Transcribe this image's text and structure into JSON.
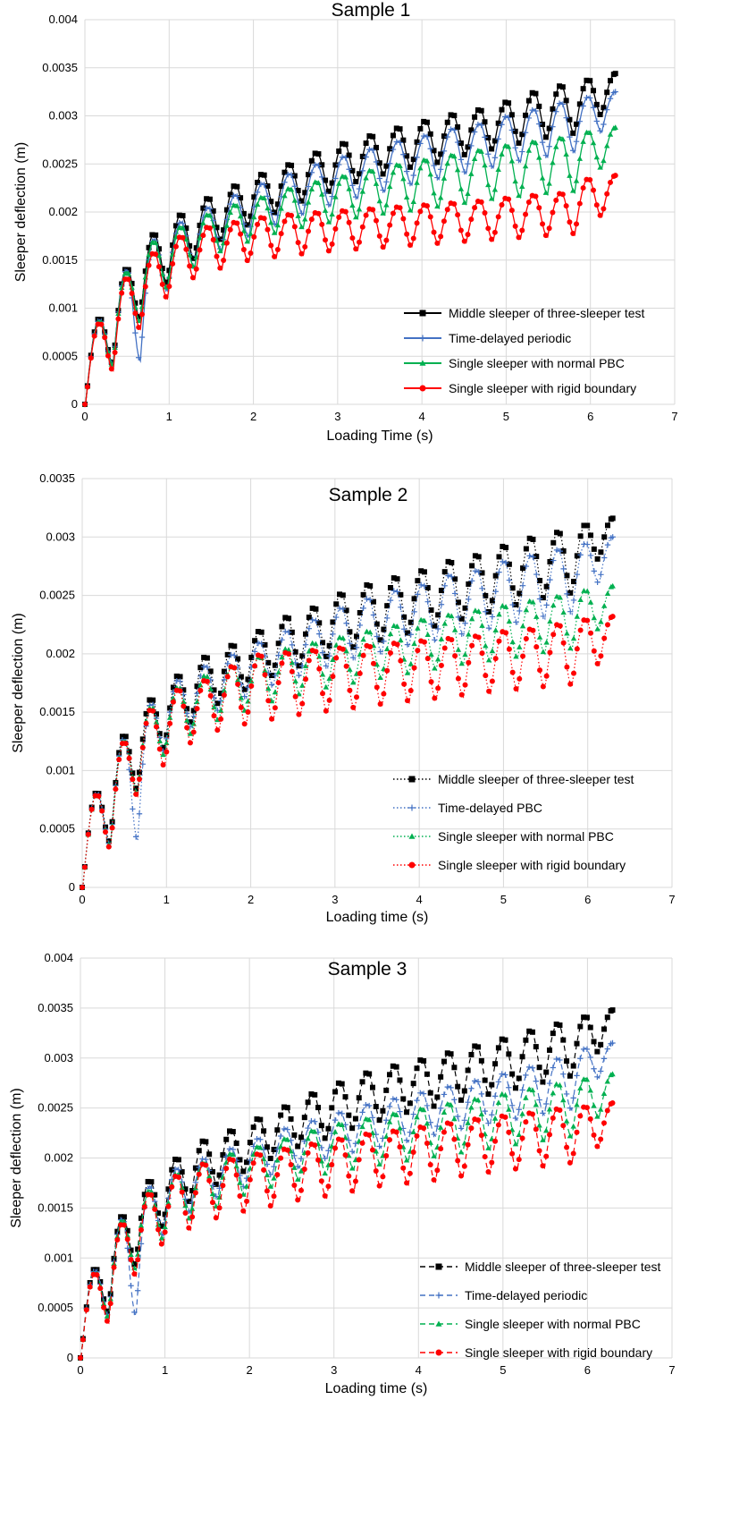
{
  "chart_data": [
    {
      "type": "line",
      "title": "Sample 1",
      "xlabel": "Loading Time (s)",
      "ylabel": "Sleeper deflection (m)",
      "xlim": [
        0,
        7
      ],
      "ylim": [
        0,
        0.004
      ],
      "xticks": [
        "0",
        "1",
        "2",
        "3",
        "4",
        "5",
        "6",
        "7"
      ],
      "yticks": [
        "0",
        "0.0005",
        "0.001",
        "0.0015",
        "0.002",
        "0.0025",
        "0.003",
        "0.0035",
        "0.004"
      ],
      "grid": true,
      "legend_position": "bottom-right",
      "series": [
        {
          "name": "Middle sleeper of three-sleeper test",
          "color": "#000000",
          "marker": "square",
          "dash": "solid",
          "peaks": [
            0.0009,
            0.00142,
            0.00178,
            0.00198,
            0.00215,
            0.00228,
            0.0024,
            0.0025,
            0.00262,
            0.00272,
            0.0028,
            0.00288,
            0.00295,
            0.00302,
            0.00307,
            0.00315,
            0.00325,
            0.00332,
            0.00338,
            0.00344
          ],
          "troughs": [
            0.00042,
            0.00089,
            0.00125,
            0.0015,
            0.0017,
            0.00185,
            0.00198,
            0.0021,
            0.0022,
            0.0023,
            0.00238,
            0.00245,
            0.0025,
            0.00258,
            0.00264,
            0.0027,
            0.00276,
            0.0028,
            0.003
          ]
        },
        {
          "name": "Time-delayed periodic",
          "color": "#4472c4",
          "marker": "plus",
          "dash": "solid",
          "peaks": [
            0.00088,
            0.0014,
            0.00172,
            0.0019,
            0.00205,
            0.00218,
            0.0023,
            0.0024,
            0.0025,
            0.00258,
            0.00266,
            0.00274,
            0.0028,
            0.00287,
            0.00292,
            0.003,
            0.00307,
            0.00314,
            0.0032,
            0.00325
          ],
          "troughs": [
            0.00041,
            0.00045,
            0.00118,
            0.00142,
            0.0016,
            0.00174,
            0.00186,
            0.00197,
            0.00206,
            0.00214,
            0.00221,
            0.00228,
            0.00234,
            0.0024,
            0.00246,
            0.00252,
            0.00257,
            0.00262,
            0.00283
          ]
        },
        {
          "name": "Single sleeper with normal PBC",
          "color": "#00b050",
          "marker": "triangle",
          "dash": "solid",
          "peaks": [
            0.00087,
            0.00138,
            0.0017,
            0.00185,
            0.00198,
            0.00208,
            0.00216,
            0.00225,
            0.00232,
            0.00238,
            0.00244,
            0.0025,
            0.00255,
            0.0026,
            0.00265,
            0.0027,
            0.00274,
            0.00278,
            0.00284,
            0.00288
          ],
          "troughs": [
            0.0004,
            0.00085,
            0.0012,
            0.00142,
            0.00158,
            0.00168,
            0.00177,
            0.00183,
            0.00188,
            0.00193,
            0.00197,
            0.002,
            0.00204,
            0.00208,
            0.00212,
            0.00215,
            0.00218,
            0.0022,
            0.00245
          ]
        },
        {
          "name": "Single sleeper with rigid boundary",
          "color": "#ff0000",
          "marker": "circle",
          "dash": "solid",
          "peaks": [
            0.00085,
            0.00132,
            0.00158,
            0.00175,
            0.00185,
            0.0019,
            0.00195,
            0.00198,
            0.002,
            0.00202,
            0.00204,
            0.00206,
            0.00208,
            0.0021,
            0.00212,
            0.00215,
            0.00218,
            0.0022,
            0.00235,
            0.00238
          ],
          "troughs": [
            0.00035,
            0.00078,
            0.0011,
            0.0013,
            0.0014,
            0.00148,
            0.00152,
            0.00155,
            0.00158,
            0.0016,
            0.00162,
            0.00164,
            0.00166,
            0.00168,
            0.0017,
            0.00172,
            0.00174,
            0.00176,
            0.00195
          ]
        }
      ]
    },
    {
      "type": "line",
      "title": "Sample 2",
      "xlabel": "Loading time (s)",
      "ylabel": "Sleeper deflection (m)",
      "xlim": [
        0,
        7
      ],
      "ylim": [
        0,
        0.0035
      ],
      "xticks": [
        "0",
        "1",
        "2",
        "3",
        "4",
        "5",
        "6",
        "7"
      ],
      "yticks": [
        "0",
        "0.0005",
        "0.001",
        "0.0015",
        "0.002",
        "0.0025",
        "0.003",
        "0.0035"
      ],
      "grid": true,
      "legend_position": "bottom-right",
      "series": [
        {
          "name": "Middle sleeper of three-sleeper test",
          "color": "#000000",
          "marker": "square",
          "dash": "dotted",
          "peaks": [
            0.00082,
            0.00131,
            0.00162,
            0.00182,
            0.00198,
            0.00208,
            0.0022,
            0.00232,
            0.0024,
            0.00252,
            0.0026,
            0.00266,
            0.00272,
            0.0028,
            0.00285,
            0.00293,
            0.003,
            0.00305,
            0.00311,
            0.00316
          ],
          "troughs": [
            0.00038,
            0.00083,
            0.00118,
            0.0014,
            0.00156,
            0.00168,
            0.0018,
            0.00188,
            0.00196,
            0.00204,
            0.0021,
            0.00216,
            0.00222,
            0.00228,
            0.00234,
            0.0024,
            0.00246,
            0.0025,
            0.0028
          ]
        },
        {
          "name": "Time-delayed PBC",
          "color": "#4472c4",
          "marker": "plus",
          "dash": "dotted",
          "peaks": [
            0.00081,
            0.00128,
            0.00158,
            0.00178,
            0.0019,
            0.002,
            0.0021,
            0.0022,
            0.0023,
            0.0024,
            0.00248,
            0.00255,
            0.0026,
            0.00268,
            0.00272,
            0.0028,
            0.00285,
            0.0029,
            0.00295,
            0.003
          ],
          "troughs": [
            0.00036,
            0.0004,
            0.00115,
            0.00136,
            0.0015,
            0.00162,
            0.00172,
            0.0018,
            0.00188,
            0.00195,
            0.002,
            0.00206,
            0.0021,
            0.00215,
            0.0022,
            0.00225,
            0.0023,
            0.00234,
            0.0026
          ]
        },
        {
          "name": "Single sleeper with normal PBC",
          "color": "#00b050",
          "marker": "triangle",
          "dash": "dotted",
          "peaks": [
            0.0008,
            0.00126,
            0.00155,
            0.00172,
            0.00182,
            0.0019,
            0.00198,
            0.00205,
            0.0021,
            0.00215,
            0.0022,
            0.00225,
            0.0023,
            0.00234,
            0.00238,
            0.00242,
            0.00246,
            0.0025,
            0.00255,
            0.00258
          ],
          "troughs": [
            0.00035,
            0.0008,
            0.00112,
            0.0013,
            0.00142,
            0.0015,
            0.00158,
            0.00164,
            0.0017,
            0.00174,
            0.00178,
            0.00182,
            0.00186,
            0.0019,
            0.00193,
            0.00196,
            0.002,
            0.00203,
            0.0022
          ]
        },
        {
          "name": "Single sleeper with rigid boundary",
          "color": "#ff0000",
          "marker": "circle",
          "dash": "dotted",
          "peaks": [
            0.0008,
            0.00125,
            0.00153,
            0.0017,
            0.00178,
            0.0019,
            0.002,
            0.00202,
            0.00204,
            0.00206,
            0.00208,
            0.0021,
            0.00212,
            0.00214,
            0.00216,
            0.0022,
            0.00222,
            0.00226,
            0.0023,
            0.00232
          ],
          "troughs": [
            0.00033,
            0.00078,
            0.00103,
            0.00122,
            0.00133,
            0.00138,
            0.00142,
            0.00146,
            0.00149,
            0.00152,
            0.00155,
            0.00158,
            0.0016,
            0.00163,
            0.00166,
            0.00168,
            0.0017,
            0.00172,
            0.0019
          ]
        }
      ]
    },
    {
      "type": "line",
      "title": "Sample 3",
      "xlabel": "Loading time (s)",
      "ylabel": "Sleeper deflection (m)",
      "xlim": [
        0,
        7
      ],
      "ylim": [
        0,
        0.004
      ],
      "xticks": [
        "0",
        "1",
        "2",
        "3",
        "4",
        "5",
        "6",
        "7"
      ],
      "yticks": [
        "0",
        "0.0005",
        "0.001",
        "0.0015",
        "0.002",
        "0.0025",
        "0.003",
        "0.0035",
        "0.004"
      ],
      "grid": true,
      "legend_position": "bottom-right",
      "series": [
        {
          "name": "Middle sleeper of three-sleeper test",
          "color": "#000000",
          "marker": "square",
          "dash": "dashed",
          "peaks": [
            0.0009,
            0.00143,
            0.00178,
            0.002,
            0.00218,
            0.00228,
            0.0024,
            0.00252,
            0.00265,
            0.00276,
            0.00286,
            0.00293,
            0.00299,
            0.00306,
            0.00313,
            0.0032,
            0.00328,
            0.00335,
            0.00342,
            0.00348
          ],
          "troughs": [
            0.00045,
            0.00092,
            0.0013,
            0.00155,
            0.00172,
            0.00185,
            0.00198,
            0.0021,
            0.00218,
            0.00228,
            0.00236,
            0.00244,
            0.0025,
            0.00256,
            0.00262,
            0.00268,
            0.00274,
            0.0028,
            0.00305
          ]
        },
        {
          "name": "Time-delayed periodic",
          "color": "#4472c4",
          "marker": "plus",
          "dash": "dashed",
          "peaks": [
            0.00088,
            0.0014,
            0.00172,
            0.0019,
            0.002,
            0.0021,
            0.0022,
            0.0023,
            0.00238,
            0.00246,
            0.00254,
            0.0026,
            0.00266,
            0.00272,
            0.00278,
            0.00285,
            0.00292,
            0.003,
            0.0031,
            0.00315
          ],
          "troughs": [
            0.00042,
            0.00042,
            0.00122,
            0.00145,
            0.0016,
            0.0017,
            0.00182,
            0.0019,
            0.00198,
            0.00205,
            0.0021,
            0.00216,
            0.00222,
            0.00228,
            0.00233,
            0.00238,
            0.00243,
            0.00248,
            0.0028
          ]
        },
        {
          "name": "Single sleeper with normal PBC",
          "color": "#00b050",
          "marker": "triangle",
          "dash": "dashed",
          "peaks": [
            0.00086,
            0.00138,
            0.00168,
            0.00185,
            0.00196,
            0.00205,
            0.00212,
            0.0022,
            0.00228,
            0.00235,
            0.0024,
            0.00245,
            0.0025,
            0.00255,
            0.0026,
            0.00265,
            0.0027,
            0.00275,
            0.0028,
            0.00284
          ],
          "troughs": [
            0.0004,
            0.00088,
            0.00118,
            0.00138,
            0.0015,
            0.00162,
            0.0017,
            0.00177,
            0.00183,
            0.00188,
            0.00192,
            0.00196,
            0.002,
            0.00204,
            0.00208,
            0.00212,
            0.00216,
            0.0022,
            0.0024
          ]
        },
        {
          "name": "Single sleeper with rigid boundary",
          "color": "#ff0000",
          "marker": "circle",
          "dash": "dashed",
          "peaks": [
            0.00085,
            0.00135,
            0.00165,
            0.00183,
            0.00195,
            0.002,
            0.00205,
            0.0021,
            0.00215,
            0.0022,
            0.00225,
            0.00228,
            0.00232,
            0.00236,
            0.0024,
            0.00243,
            0.00246,
            0.0025,
            0.00252,
            0.00255
          ],
          "troughs": [
            0.00035,
            0.00082,
            0.00112,
            0.00128,
            0.00138,
            0.00145,
            0.0015,
            0.00156,
            0.0016,
            0.00165,
            0.0017,
            0.00173,
            0.00176,
            0.0018,
            0.00184,
            0.00187,
            0.0019,
            0.00193,
            0.0021
          ]
        }
      ]
    }
  ]
}
